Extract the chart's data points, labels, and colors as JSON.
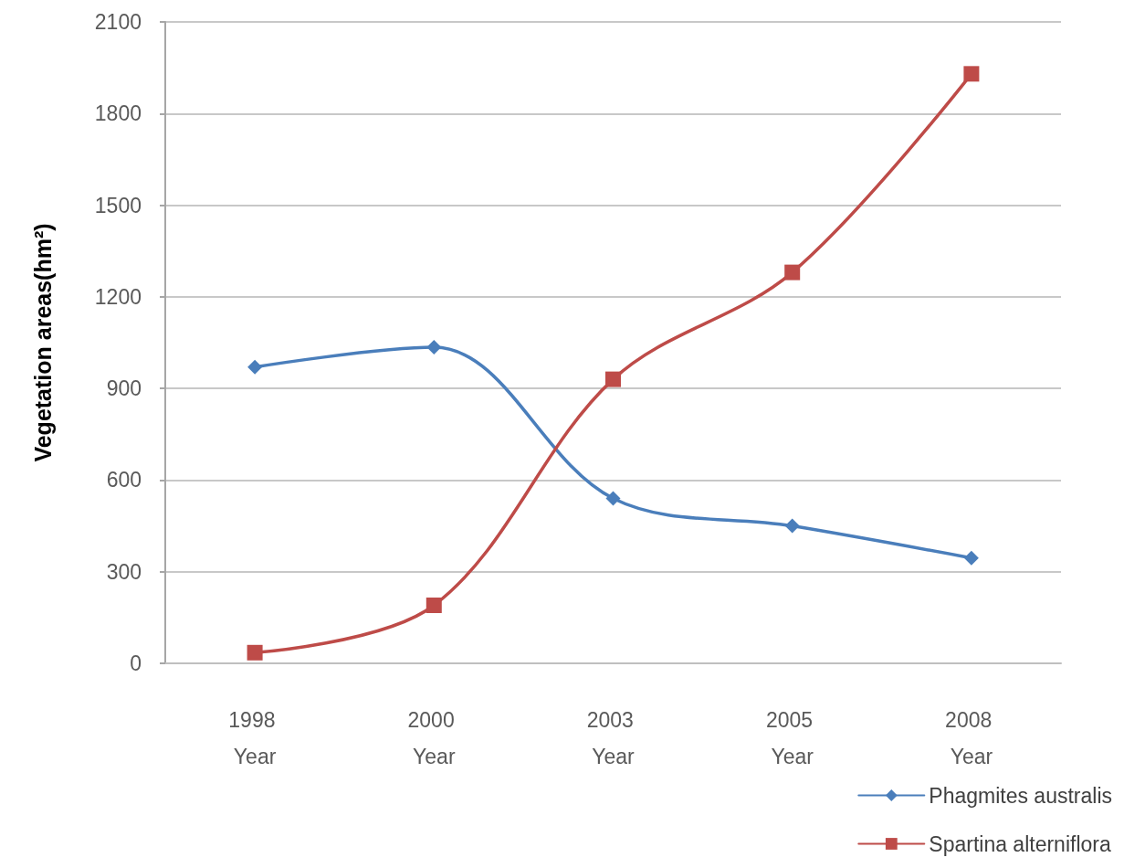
{
  "chart_data": {
    "type": "line",
    "ylabel": "Vegetation areas(hm²)",
    "categories": [
      "1998 Year",
      "2000 Year",
      "2003 Year",
      "2005 Year",
      "2008 Year"
    ],
    "series": [
      {
        "name": "Phagmites australis",
        "color": "#4a7ebb",
        "marker": "diamond",
        "values": [
          970,
          1035,
          540,
          450,
          345
        ]
      },
      {
        "name": "Spartina alterniflora",
        "color": "#be4b48",
        "marker": "square",
        "values": [
          35,
          190,
          930,
          1280,
          1930
        ]
      }
    ],
    "ylim": [
      0,
      2100
    ],
    "yticks": [
      0,
      300,
      600,
      900,
      1200,
      1500,
      1800,
      2100
    ],
    "grid": "y",
    "legend": "bottom right"
  }
}
